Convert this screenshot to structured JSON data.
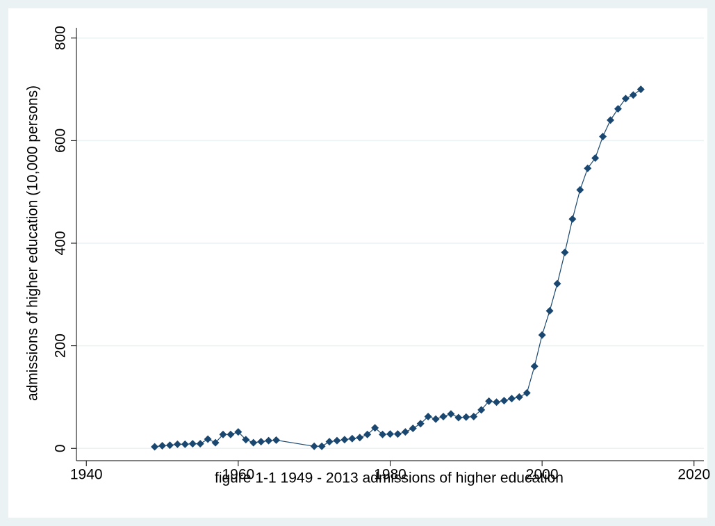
{
  "chart_data": {
    "type": "line",
    "title": "figure 1-1 1949 - 2013 admissions of higher education",
    "y_label": "admissions of higher education (10,000 persons)",
    "x": [
      1949,
      1950,
      1951,
      1952,
      1953,
      1954,
      1955,
      1956,
      1957,
      1958,
      1959,
      1960,
      1961,
      1962,
      1963,
      1964,
      1965,
      1970,
      1971,
      1972,
      1973,
      1974,
      1975,
      1976,
      1977,
      1978,
      1979,
      1980,
      1981,
      1982,
      1983,
      1984,
      1985,
      1986,
      1987,
      1988,
      1989,
      1990,
      1991,
      1992,
      1993,
      1994,
      1995,
      1996,
      1997,
      1998,
      1999,
      2000,
      2001,
      2002,
      2003,
      2004,
      2005,
      2006,
      2007,
      2008,
      2009,
      2010,
      2011,
      2012,
      2013
    ],
    "series": [
      {
        "color": "#1a476f",
        "values": [
          3,
          5,
          6,
          8,
          8,
          9,
          9,
          18,
          11,
          27,
          27,
          32,
          17,
          11,
          13,
          15,
          16,
          4,
          4,
          13,
          15,
          17,
          19,
          21,
          27,
          40,
          27,
          28,
          28,
          32,
          39,
          48,
          62,
          57,
          62,
          67,
          60,
          61,
          62,
          75,
          92,
          90,
          93,
          97,
          100,
          108,
          160,
          221,
          268,
          321,
          382,
          447,
          504,
          546,
          566,
          608,
          640,
          662,
          682,
          689,
          700
        ]
      }
    ],
    "xlim": [
      1938.7,
      2021.3
    ],
    "xticks": [
      1940,
      1960,
      1980,
      2000,
      2020
    ],
    "ylim": [
      -20,
      820
    ],
    "yticks": [
      0,
      200,
      400,
      600,
      800
    ],
    "grid": true
  }
}
